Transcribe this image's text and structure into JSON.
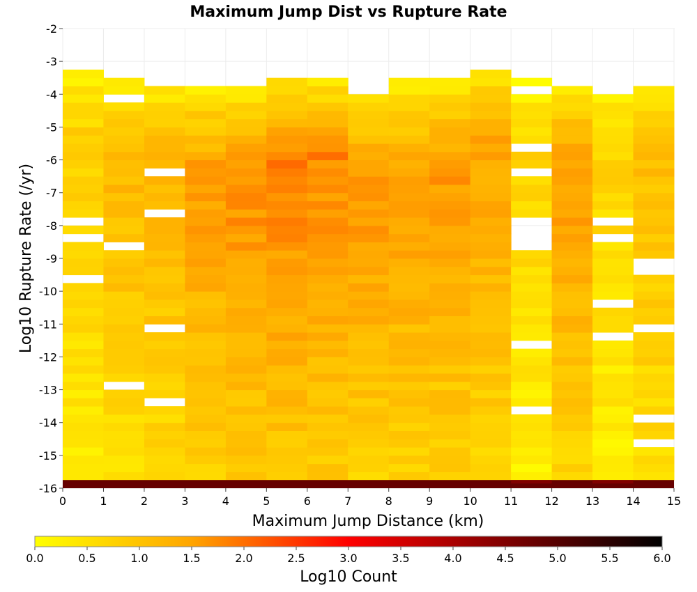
{
  "chart_data": {
    "type": "heatmap",
    "title": "Maximum Jump Dist vs Rupture Rate",
    "xlabel": "Maximum Jump Distance (km)",
    "ylabel": "Log10 Rupture Rate (/yr)",
    "xlim": [
      0,
      15
    ],
    "ylim": [
      -16,
      -2
    ],
    "x_ticks": [
      "0",
      "1",
      "2",
      "3",
      "4",
      "5",
      "6",
      "7",
      "8",
      "9",
      "10",
      "11",
      "12",
      "13",
      "14",
      "15"
    ],
    "y_ticks": [
      "-2",
      "-3",
      "-4",
      "-5",
      "-6",
      "-7",
      "-8",
      "-9",
      "-10",
      "-11",
      "-12",
      "-13",
      "-14",
      "-15",
      "-16"
    ],
    "x_bin_width_km": 1,
    "y_bin_height": 0.25,
    "colorbar": {
      "label": "Log10 Count",
      "range": [
        0,
        6
      ],
      "ticks": [
        "0.0",
        "0.5",
        "1.0",
        "1.5",
        "2.0",
        "2.5",
        "3.0",
        "3.5",
        "4.0",
        "4.5",
        "5.0",
        "5.5",
        "6.0"
      ],
      "colormap": [
        "#ffff00",
        "#ffa500",
        "#ff0000",
        "#000000"
      ]
    },
    "columns": [
      {
        "x_start": 0,
        "x_end": 1,
        "y_min": -16,
        "y_max": -3.25
      },
      {
        "x_start": 1,
        "x_end": 2,
        "y_min": -16,
        "y_max": -3.5
      },
      {
        "x_start": 2,
        "x_end": 3,
        "y_min": -16,
        "y_max": -3.75
      },
      {
        "x_start": 3,
        "x_end": 4,
        "y_min": -16,
        "y_max": -3.75
      },
      {
        "x_start": 4,
        "x_end": 5,
        "y_min": -16,
        "y_max": -3.75
      },
      {
        "x_start": 5,
        "x_end": 6,
        "y_min": -16,
        "y_max": -3.5
      },
      {
        "x_start": 6,
        "x_end": 7,
        "y_min": -16,
        "y_max": -3.5
      },
      {
        "x_start": 7,
        "x_end": 8,
        "y_min": -16,
        "y_max": -4.0
      },
      {
        "x_start": 8,
        "x_end": 9,
        "y_min": -16,
        "y_max": -3.5
      },
      {
        "x_start": 9,
        "x_end": 10,
        "y_min": -16,
        "y_max": -3.5
      },
      {
        "x_start": 10,
        "x_end": 11,
        "y_min": -16,
        "y_max": -3.25
      },
      {
        "x_start": 11,
        "x_end": 12,
        "y_min": -16,
        "y_max": -3.5
      },
      {
        "x_start": 12,
        "x_end": 13,
        "y_min": -16,
        "y_max": -3.75
      },
      {
        "x_start": 13,
        "x_end": 14,
        "y_min": -16,
        "y_max": -4.0
      },
      {
        "x_start": 14,
        "x_end": 15,
        "y_min": -16,
        "y_max": -3.75
      }
    ],
    "bottom_row": {
      "y_start": -16,
      "y_end": -15.75,
      "log10_count": 4.8
    },
    "column_peak_log10_count": [
      1.0,
      1.2,
      1.3,
      1.6,
      1.8,
      1.9,
      1.8,
      1.7,
      1.6,
      1.6,
      1.5,
      0.9,
      1.6,
      0.9,
      1.1
    ],
    "column_peak_y": [
      -5.5,
      -6.0,
      -6.0,
      -6.5,
      -6.5,
      -6.25,
      -6.0,
      -6.5,
      -6.75,
      -6.25,
      -5.5,
      -6.0,
      -6.25,
      -5.5,
      -5.75
    ]
  }
}
